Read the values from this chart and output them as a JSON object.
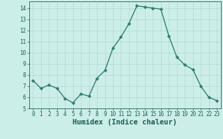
{
  "x": [
    0,
    1,
    2,
    3,
    4,
    5,
    6,
    7,
    8,
    9,
    10,
    11,
    12,
    13,
    14,
    15,
    16,
    17,
    18,
    19,
    20,
    21,
    22,
    23
  ],
  "y": [
    7.5,
    6.8,
    7.1,
    6.8,
    5.9,
    5.5,
    6.3,
    6.1,
    7.7,
    8.4,
    10.4,
    11.4,
    12.6,
    14.2,
    14.1,
    14.0,
    13.9,
    11.5,
    9.6,
    8.9,
    8.5,
    7.0,
    6.0,
    5.7
  ],
  "line_color": "#2d7d72",
  "marker": "D",
  "marker_size": 2.2,
  "bg_color": "#cceee8",
  "grid_color": "#b0d8d2",
  "tick_color": "#1a5c55",
  "xlabel": "Humidex (Indice chaleur)",
  "xlabel_fontsize": 7.5,
  "xlim": [
    -0.5,
    23.5
  ],
  "ylim": [
    5,
    14.6
  ],
  "yticks": [
    5,
    6,
    7,
    8,
    9,
    10,
    11,
    12,
    13,
    14
  ],
  "xticks": [
    0,
    1,
    2,
    3,
    4,
    5,
    6,
    7,
    8,
    9,
    10,
    11,
    12,
    13,
    14,
    15,
    16,
    17,
    18,
    19,
    20,
    21,
    22,
    23
  ],
  "tick_fontsize": 5.5,
  "line_width": 1.0
}
